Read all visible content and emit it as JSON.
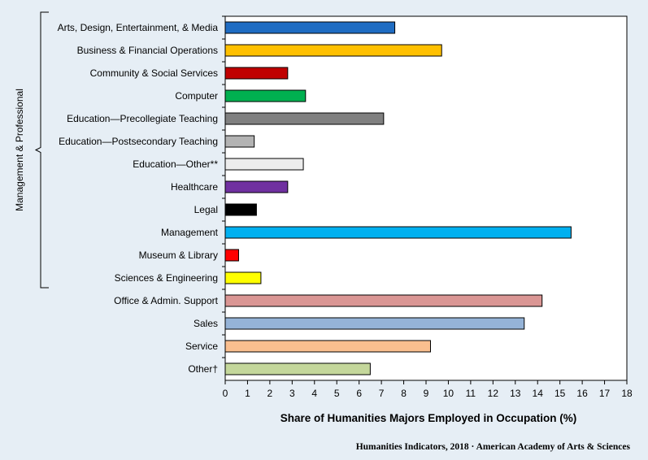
{
  "chart_data": {
    "type": "bar",
    "orientation": "horizontal",
    "categories": [
      "Arts, Design, Entertainment, & Media",
      "Business & Financial Operations",
      "Community & Social Services",
      "Computer",
      "Education—Precollegiate Teaching",
      "Education—Postsecondary Teaching",
      "Education—Other**",
      "Healthcare",
      "Legal",
      "Management",
      "Museum & Library",
      "Sciences & Engineering",
      "Office & Admin. Support",
      "Sales",
      "Service",
      "Other†"
    ],
    "values": [
      7.6,
      9.7,
      2.8,
      3.6,
      7.1,
      1.3,
      3.5,
      2.8,
      1.4,
      15.5,
      0.6,
      1.6,
      14.2,
      13.4,
      9.2,
      6.5
    ],
    "colors": [
      "#1f6cc2",
      "#ffc000",
      "#c00000",
      "#00b050",
      "#808080",
      "#b3b3b3",
      "#ececec",
      "#7030a0",
      "#000000",
      "#00b0f0",
      "#ff0000",
      "#ffff00",
      "#da9694",
      "#95b3d7",
      "#fabf8f",
      "#c4d79b"
    ],
    "xlabel": "Share of Humanities Majors Employed in Occupation (%)",
    "ylabel": "",
    "xlim": [
      0,
      18
    ],
    "xticks": [
      "0",
      "1",
      "2",
      "3",
      "4",
      "5",
      "6",
      "7",
      "8",
      "9",
      "10",
      "11",
      "12",
      "13",
      "14",
      "15",
      "16",
      "17",
      "18"
    ],
    "grid": false,
    "group_label": "Management  & Professional",
    "group_range": [
      0,
      11
    ]
  },
  "footer": "Humanities  Indicators, 2018  · American Academy  of Arts & Sciences"
}
